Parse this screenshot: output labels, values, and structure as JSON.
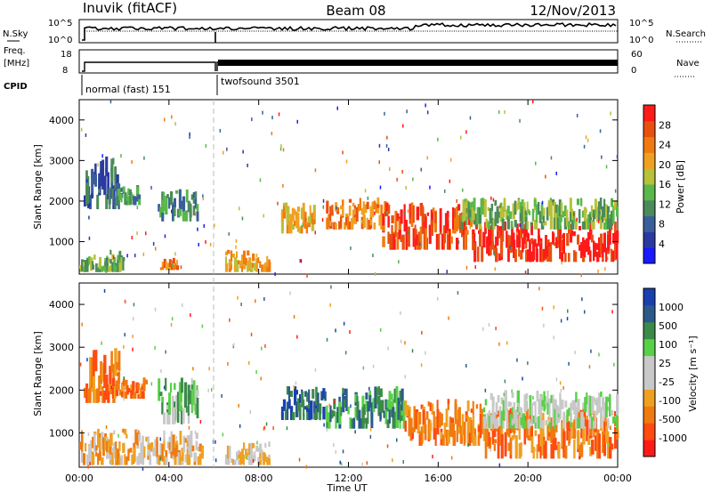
{
  "header": {
    "station": "Inuvik (fitACF)",
    "beam": "Beam 08",
    "date": "12/Nov/2013"
  },
  "status_panels": {
    "nsky_label": "N.Sky",
    "nsky_ticks": [
      "10^5",
      "10^0"
    ],
    "nsearch_label": "N.Search",
    "freq_label_line1": "Freq.",
    "freq_label_line2": "[MHz]",
    "freq_ticks": [
      "18",
      "8"
    ],
    "nave_label": "Nave",
    "nave_ticks": [
      "60",
      "0"
    ],
    "cpid_label": "CPID",
    "cpid_modes": [
      {
        "name": "normal (fast) 151",
        "start_hour": 0,
        "end_hour": 6
      },
      {
        "name": "twofsound 3501",
        "start_hour": 6,
        "end_hour": 24
      }
    ]
  },
  "colors": {
    "power_scale": [
      "#1a1aff",
      "#2b3aa0",
      "#3a5e9a",
      "#4b8a5a",
      "#58b84a",
      "#b7c13a",
      "#f0a020",
      "#f07a10",
      "#e85010",
      "#ff1a1a"
    ],
    "velocity_scale": [
      "#ff1a1a",
      "#ff4a10",
      "#f07a10",
      "#f0a020",
      "#c8c8c8",
      "#c8c8c8",
      "#58d048",
      "#3b8a4a",
      "#2b5a8a",
      "#1a40b0"
    ]
  },
  "chart_data": [
    {
      "type": "heatmap",
      "title": "Power",
      "ylabel": "Slant Range [km]",
      "xlabel": "Time UT",
      "x_ticks": [
        "00:00",
        "04:00",
        "08:00",
        "12:00",
        "16:00",
        "20:00",
        "00:00"
      ],
      "y_ticks": [
        1000,
        2000,
        3000,
        4000
      ],
      "xlim_hours": [
        0,
        24
      ],
      "ylim_km": [
        200,
        4500
      ],
      "colorbar_label": "Power [dB]",
      "colorbar_ticks": [
        "4",
        "8",
        "12",
        "16",
        "20",
        "24",
        "28"
      ],
      "echo_regions": [
        {
          "t0": 0.2,
          "t1": 1.8,
          "r0": 1800,
          "r1": 3100,
          "level": 2
        },
        {
          "t0": 1.3,
          "t1": 2.7,
          "r0": 1900,
          "r1": 2400,
          "level": 3
        },
        {
          "t0": 3.5,
          "t1": 5.3,
          "r0": 1500,
          "r1": 2300,
          "level": 3
        },
        {
          "t0": 0.0,
          "t1": 2.0,
          "r0": 250,
          "r1": 800,
          "level": 4
        },
        {
          "t0": 3.6,
          "t1": 4.4,
          "r0": 300,
          "r1": 600,
          "level": 7
        },
        {
          "t0": 6.5,
          "t1": 8.5,
          "r0": 250,
          "r1": 800,
          "level": 6
        },
        {
          "t0": 9.0,
          "t1": 10.5,
          "r0": 1200,
          "r1": 2000,
          "level": 6
        },
        {
          "t0": 11.0,
          "t1": 13.5,
          "r0": 1300,
          "r1": 2100,
          "level": 7
        },
        {
          "t0": 13.5,
          "t1": 17.5,
          "r0": 800,
          "r1": 2000,
          "level": 8
        },
        {
          "t0": 17.5,
          "t1": 24.0,
          "r0": 500,
          "r1": 1500,
          "level": 9
        },
        {
          "t0": 17.0,
          "t1": 24.0,
          "r0": 1300,
          "r1": 2100,
          "level": 4
        }
      ]
    },
    {
      "type": "heatmap",
      "title": "Velocity",
      "ylabel": "Slant Range [km]",
      "xlabel": "Time UT",
      "x_ticks": [
        "00:00",
        "04:00",
        "08:00",
        "12:00",
        "16:00",
        "20:00",
        "00:00"
      ],
      "y_ticks": [
        1000,
        2000,
        3000,
        4000
      ],
      "xlim_hours": [
        0,
        24
      ],
      "ylim_km": [
        200,
        4500
      ],
      "colorbar_label": "Velocity [m s⁻¹]",
      "colorbar_ticks": [
        "-1000",
        "-500",
        "-100",
        "-25",
        "25",
        "100",
        "500",
        "1000"
      ],
      "echo_regions": [
        {
          "t0": 0.2,
          "t1": 1.8,
          "r0": 1700,
          "r1": 3000,
          "level": 2
        },
        {
          "t0": 1.3,
          "t1": 3.0,
          "r0": 1800,
          "r1": 2300,
          "level": 2
        },
        {
          "t0": 3.5,
          "t1": 5.3,
          "r0": 1200,
          "r1": 2300,
          "level": 6
        },
        {
          "t0": 0.0,
          "t1": 5.5,
          "r0": 250,
          "r1": 1100,
          "level": 3
        },
        {
          "t0": 6.5,
          "t1": 8.5,
          "r0": 250,
          "r1": 800,
          "level": 4
        },
        {
          "t0": 9.0,
          "t1": 11.0,
          "r0": 1300,
          "r1": 2100,
          "level": 8
        },
        {
          "t0": 11.0,
          "t1": 14.5,
          "r0": 1100,
          "r1": 2100,
          "level": 7
        },
        {
          "t0": 14.5,
          "t1": 18.0,
          "r0": 700,
          "r1": 1800,
          "level": 2
        },
        {
          "t0": 18.0,
          "t1": 24.0,
          "r0": 400,
          "r1": 1600,
          "level": 2
        },
        {
          "t0": 18.0,
          "t1": 24.0,
          "r0": 1100,
          "r1": 2000,
          "level": 5
        }
      ]
    }
  ]
}
